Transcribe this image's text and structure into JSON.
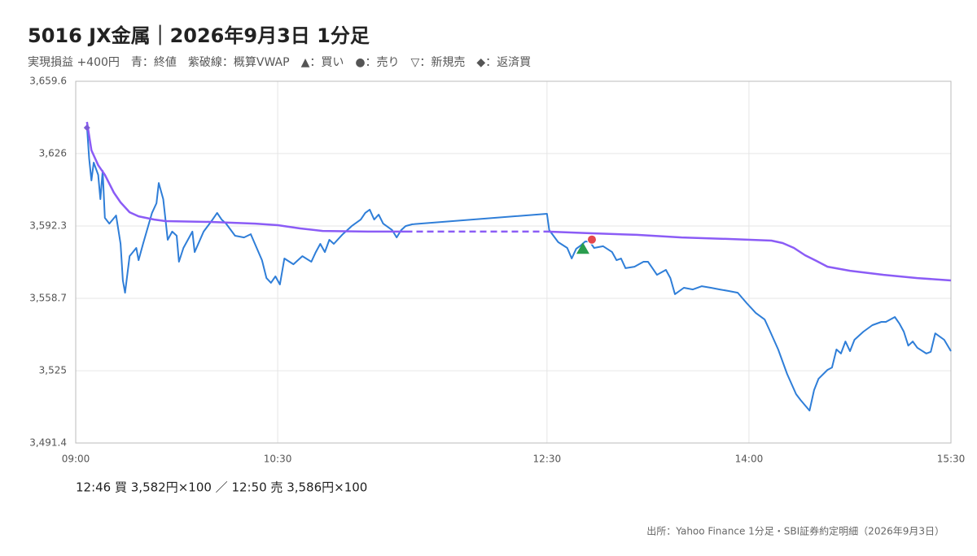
{
  "chart_data": {
    "type": "line",
    "title": "5016 JX金属｜2026年9月3日 1分足",
    "subtitle": "実現損益 +400円　青：終値　紫破線：概算VWAP　▲：買い　●：売り　▽：新規売　◆：返済買",
    "annotation": "12:46 買 3,582円×100 ／ 12:50 売 3,586円×100",
    "source": "出所：Yahoo Finance 1分足・SBI証券約定明細（2026年9月3日）",
    "xlim": [
      540,
      930
    ],
    "xticks": [
      {
        "value": 540,
        "label": "09:00"
      },
      {
        "value": 630,
        "label": "10:30"
      },
      {
        "value": 750,
        "label": "12:30"
      },
      {
        "value": 840,
        "label": "14:00"
      },
      {
        "value": 930,
        "label": "15:30"
      }
    ],
    "ylim": [
      3491.4,
      3659.6
    ],
    "yticks": [
      {
        "value": 3491.4,
        "label": "3,491.4"
      },
      {
        "value": 3525,
        "label": "3,525"
      },
      {
        "value": 3558.7,
        "label": "3,558.7"
      },
      {
        "value": 3592.3,
        "label": "3,592.3"
      },
      {
        "value": 3626,
        "label": "3,626"
      },
      {
        "value": 3659.6,
        "label": "3,659.6"
      }
    ],
    "grid": true,
    "series": [
      {
        "color": "#2f7ed8",
        "x": [
          545,
          546,
          547,
          548,
          550,
          551,
          552,
          553,
          555,
          558,
          560,
          561,
          562,
          564,
          567,
          568,
          570,
          574,
          576,
          577,
          579,
          581,
          583,
          585,
          586,
          588,
          592,
          593,
          597,
          601,
          603,
          605,
          607,
          611,
          615,
          618,
          623,
          625,
          627,
          629,
          631,
          633,
          637,
          641,
          645,
          647,
          649,
          651,
          653,
          655,
          659,
          663,
          667,
          669,
          671,
          673,
          675,
          677,
          681,
          683,
          685,
          687,
          690,
          750,
          751,
          755,
          759,
          761,
          763,
          765,
          767,
          769,
          771,
          775,
          779,
          781,
          783,
          785,
          789,
          793,
          795,
          797,
          799,
          803,
          805,
          807,
          811,
          815,
          819,
          823,
          827,
          831,
          835,
          839,
          843,
          847,
          849,
          853,
          857,
          861,
          863,
          867,
          869,
          871,
          875,
          877,
          879,
          881,
          883,
          885,
          887,
          891,
          895,
          899,
          901,
          905,
          907,
          909,
          911,
          913,
          915,
          919,
          921,
          923,
          927,
          930
        ],
        "values": [
          3638.8,
          3623.7,
          3613.5,
          3621.8,
          3616.1,
          3604.8,
          3618.0,
          3596.1,
          3593.4,
          3597.2,
          3584.0,
          3567.0,
          3561.3,
          3578.3,
          3582.1,
          3576.4,
          3584.0,
          3598.4,
          3602.9,
          3612.3,
          3604.8,
          3585.9,
          3589.7,
          3587.8,
          3575.7,
          3582.1,
          3589.7,
          3580.2,
          3589.7,
          3595.3,
          3598.4,
          3595.3,
          3593.4,
          3587.8,
          3587.0,
          3588.5,
          3576.4,
          3568.1,
          3565.9,
          3568.9,
          3565.1,
          3577.2,
          3574.5,
          3578.3,
          3575.7,
          3580.2,
          3584.0,
          3580.2,
          3585.9,
          3584.0,
          3588.5,
          3592.3,
          3595.3,
          3598.4,
          3599.9,
          3595.3,
          3597.6,
          3593.4,
          3590.4,
          3587.0,
          3590.4,
          3592.3,
          3593.1,
          3598.0,
          3590.4,
          3584.8,
          3582.1,
          3577.2,
          3581.7,
          3583.2,
          3585.1,
          3585.1,
          3582.1,
          3582.9,
          3580.2,
          3576.4,
          3577.2,
          3572.7,
          3573.4,
          3575.7,
          3575.7,
          3572.7,
          3569.6,
          3571.9,
          3568.1,
          3560.6,
          3563.6,
          3562.8,
          3564.3,
          3563.6,
          3562.8,
          3562.1,
          3561.3,
          3556.4,
          3551.9,
          3548.8,
          3544.3,
          3534.9,
          3523.5,
          3514.1,
          3511.4,
          3506.5,
          3516.0,
          3521.3,
          3525.4,
          3526.5,
          3534.9,
          3533.0,
          3538.6,
          3534.1,
          3539.4,
          3543.2,
          3546.2,
          3547.7,
          3547.7,
          3550.0,
          3547.0,
          3543.2,
          3536.7,
          3538.6,
          3535.7,
          3533.0,
          3533.8,
          3542.4,
          3539.4,
          3534.1
        ]
      },
      {
        "color": "#8b5cf6",
        "x": [
          545,
          547,
          550,
          553,
          557,
          560,
          564,
          568,
          575,
          580,
          600,
          620,
          630,
          640,
          650,
          670,
          690,
          750,
          770,
          790,
          810,
          830,
          850,
          855,
          860,
          865,
          870,
          875,
          885,
          900,
          915,
          930
        ],
        "values": [
          3640.7,
          3627.5,
          3620.6,
          3616.1,
          3607.8,
          3603.3,
          3598.7,
          3596.8,
          3595.3,
          3594.6,
          3594.2,
          3593.4,
          3592.7,
          3591.2,
          3590.0,
          3589.7,
          3589.7,
          3589.7,
          3588.9,
          3588.2,
          3587.0,
          3586.3,
          3585.5,
          3584.4,
          3582.1,
          3578.7,
          3576.1,
          3573.4,
          3571.5,
          3569.6,
          3568.1,
          3567.0
        ]
      }
    ],
    "markers": [
      {
        "x": 545,
        "y": 3638.0,
        "shape": "diamond",
        "color": "#7c5cd6"
      },
      {
        "x": 766,
        "y": 3582,
        "shape": "triangle",
        "color": "#2a9d4e"
      },
      {
        "x": 770,
        "y": 3586,
        "shape": "circle",
        "color": "#e5484d"
      }
    ]
  }
}
